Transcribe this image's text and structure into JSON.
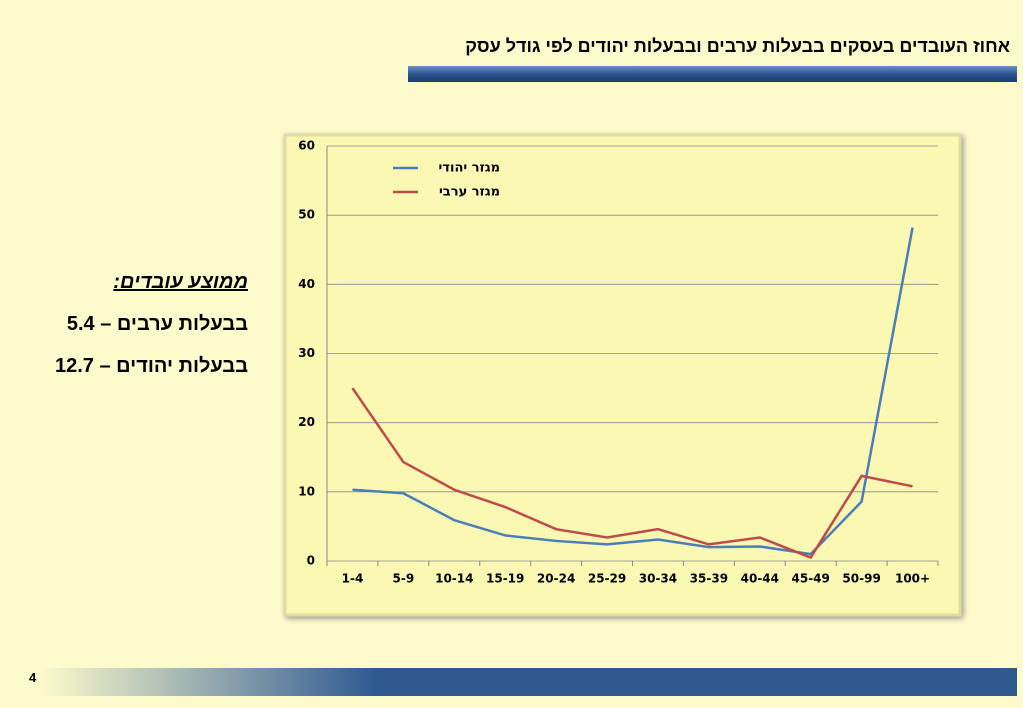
{
  "slide": {
    "title": "אחוז העובדים בעסקים בבעלות ערבים ובבעלות יהודים לפי גודל עסק",
    "side_heading": "ממוצע עובדים:",
    "side_lines": [
      "בבעלות ערבים – 5.4",
      "בבעלות יהודים – 12.7"
    ],
    "page_number": "4"
  },
  "chart_data": {
    "type": "line",
    "categories": [
      "1-4",
      "5-9",
      "10-14",
      "15-19",
      "20-24",
      "25-29",
      "30-34",
      "35-39",
      "40-44",
      "45-49",
      "50-99",
      "100+"
    ],
    "series": [
      {
        "name": "מגזר יהודי",
        "color": "#4a7ebb",
        "values": [
          10.3,
          9.8,
          5.9,
          3.7,
          2.9,
          2.4,
          3.1,
          2.0,
          2.1,
          1.0,
          8.6,
          48.2
        ]
      },
      {
        "name": "מגזר ערבי",
        "color": "#be4b48",
        "values": [
          25.0,
          14.3,
          10.3,
          7.8,
          4.6,
          3.4,
          4.6,
          2.4,
          3.4,
          0.5,
          12.3,
          10.8
        ]
      }
    ],
    "ylim": [
      0,
      60
    ],
    "yticks": [
      0,
      10,
      20,
      30,
      40,
      50,
      60
    ],
    "grid": true
  }
}
